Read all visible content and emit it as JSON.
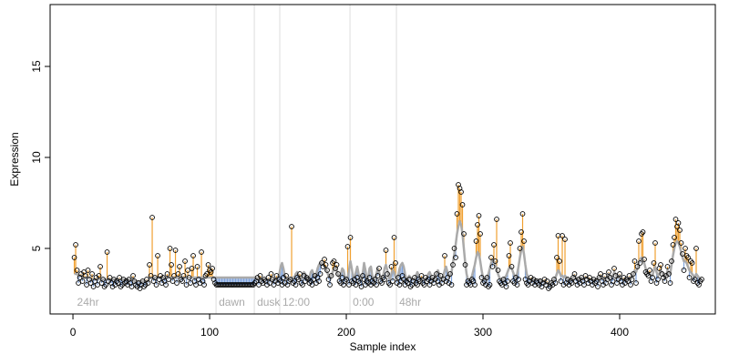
{
  "chart_data": {
    "type": "residual",
    "xlabel": "Sample index",
    "ylabel": "Expression",
    "xlim": [
      -16.7,
      470
    ],
    "ylim": [
      1.4,
      18.4
    ],
    "xticks": [
      0,
      100,
      200,
      300,
      400
    ],
    "yticks": [
      5,
      10,
      15
    ],
    "up_color": "#f0a030",
    "down_color": "#7fa3dc",
    "line_color": "#aaaaaa",
    "vline_color": "#dddddd",
    "vlines": [
      104.7,
      132.7,
      151.3,
      202.7,
      236.7
    ],
    "annotations": [
      {
        "label": "24hr",
        "x": 1
      },
      {
        "label": "dawn",
        "x": 104.7
      },
      {
        "label": "dusk",
        "x": 132.7
      },
      {
        "label": "12:00",
        "x": 151.3
      },
      {
        "label": "0:00",
        "x": 202.7
      },
      {
        "label": "48hr",
        "x": 236.7
      }
    ],
    "values": [
      4.5,
      5.2,
      3.8,
      3.1,
      3.4,
      3.6,
      3.2,
      3.7,
      3.5,
      3.0,
      3.8,
      3.3,
      3.1,
      3.6,
      2.9,
      3.2,
      3.4,
      3.0,
      3.5,
      4.0,
      3.1,
      3.3,
      2.9,
      3.0,
      4.8,
      3.2,
      3.4,
      3.1,
      2.9,
      3.3,
      3.0,
      3.2,
      3.1,
      3.4,
      2.9,
      3.0,
      3.3,
      3.1,
      3.2,
      3.0,
      3.3,
      3.1,
      2.9,
      3.5,
      3.2,
      3.0,
      2.9,
      3.1,
      2.8,
      3.0,
      3.2,
      2.9,
      3.0,
      3.3,
      3.1,
      4.1,
      3.5,
      6.7,
      3.2,
      3.4,
      3.0,
      4.6,
      3.3,
      3.5,
      3.1,
      3.4,
      3.2,
      3.0,
      3.6,
      3.3,
      5.0,
      4.1,
      3.2,
      3.5,
      4.9,
      3.1,
      3.6,
      4.0,
      3.3,
      3.2,
      3.5,
      4.3,
      3.0,
      3.8,
      3.4,
      3.1,
      3.9,
      4.6,
      3.2,
      3.0,
      4.0,
      3.3,
      3.1,
      4.8,
      3.2,
      3.0,
      3.5,
      3.6,
      4.1,
      3.8,
      3.7,
      3.9,
      3.3,
      3.1,
      3.0,
      3.0,
      3.0,
      3.0,
      3.0,
      3.0,
      3.0,
      3.0,
      3.0,
      3.0,
      3.0,
      3.0,
      3.0,
      3.0,
      3.0,
      3.0,
      3.0,
      3.0,
      3.0,
      3.0,
      3.0,
      3.0,
      3.0,
      3.0,
      3.0,
      3.0,
      3.0,
      3.0,
      3.1,
      3.2,
      3.4,
      3.0,
      3.5,
      3.2,
      3.1,
      3.3,
      3.2,
      3.0,
      3.4,
      3.1,
      3.6,
      3.3,
      3.0,
      3.2,
      3.5,
      3.1,
      3.3,
      3.2,
      3.0,
      3.4,
      3.1,
      3.5,
      3.0,
      3.2,
      3.3,
      6.2,
      3.1,
      3.2,
      3.0,
      3.4,
      3.3,
      3.6,
      3.1,
      3.0,
      3.5,
      3.2,
      3.4,
      3.3,
      3.1,
      3.2,
      3.0,
      3.3,
      3.5,
      3.1,
      3.4,
      3.2,
      3.6,
      4.2,
      4.0,
      4.4,
      4.1,
      3.8,
      3.3,
      3.0,
      3.5,
      4.2,
      4.3,
      3.9,
      4.1,
      3.6,
      3.2,
      3.1,
      3.4,
      3.0,
      3.2,
      3.3,
      5.1,
      3.0,
      5.6,
      3.2,
      3.1,
      3.3,
      3.0,
      3.4,
      3.2,
      3.1,
      2.9,
      3.5,
      3.3,
      3.0,
      3.2,
      3.1,
      3.4,
      3.0,
      3.2,
      3.1,
      3.3,
      3.0,
      3.5,
      3.9,
      3.2,
      3.1,
      3.4,
      3.3,
      4.9,
      3.6,
      3.1,
      3.0,
      4.0,
      3.2,
      5.6,
      4.2,
      3.1,
      3.4,
      3.0,
      3.2,
      3.5,
      3.3,
      3.0,
      3.2,
      3.1,
      3.3,
      2.9,
      3.0,
      3.2,
      3.4,
      3.1,
      3.0,
      3.3,
      3.2,
      3.5,
      3.1,
      3.0,
      3.4,
      3.2,
      3.3,
      3.0,
      3.2,
      3.4,
      3.1,
      3.3,
      3.6,
      3.2,
      3.0,
      3.5,
      3.1,
      3.3,
      4.6,
      3.2,
      3.4,
      3.1,
      3.6,
      3.0,
      4.1,
      5.0,
      4.5,
      6.9,
      8.5,
      8.3,
      8.1,
      7.4,
      5.8,
      4.1,
      3.0,
      3.2,
      3.1,
      3.0,
      3.3,
      3.2,
      3.0,
      5.4,
      6.3,
      6.8,
      5.8,
      3.4,
      3.1,
      3.2,
      3.0,
      3.4,
      2.9,
      3.0,
      4.5,
      4.0,
      5.2,
      4.3,
      6.6,
      3.8,
      3.2,
      3.1,
      3.0,
      3.3,
      3.1,
      2.9,
      3.2,
      4.6,
      5.3,
      4.0,
      3.2,
      3.1,
      3.4,
      3.0,
      3.3,
      5.0,
      5.9,
      6.9,
      5.4,
      3.3,
      3.1,
      3.0,
      3.2,
      3.4,
      3.1,
      3.3,
      3.0,
      3.2,
      3.1,
      3.0,
      3.2,
      2.9,
      3.1,
      3.3,
      3.0,
      3.2,
      2.8,
      2.9,
      3.1,
      3.0,
      3.3,
      3.1,
      4.5,
      5.7,
      4.3,
      3.2,
      5.7,
      3.0,
      5.5,
      3.1,
      3.3,
      3.0,
      3.2,
      3.1,
      3.4,
      3.6,
      3.2,
      3.0,
      3.3,
      3.1,
      3.4,
      3.2,
      3.0,
      3.5,
      3.3,
      3.1,
      3.4,
      3.2,
      3.0,
      3.3,
      3.1,
      3.2,
      2.9,
      3.4,
      3.6,
      3.2,
      3.0,
      3.5,
      3.1,
      3.3,
      3.7,
      3.4,
      3.0,
      3.2,
      3.9,
      3.5,
      3.1,
      3.3,
      3.6,
      3.2,
      3.0,
      3.4,
      3.1,
      3.3,
      3.2,
      3.5,
      3.0,
      3.3,
      3.6,
      4.3,
      3.1,
      4.0,
      5.4,
      4.2,
      5.8,
      5.9,
      4.4,
      3.7,
      3.6,
      3.5,
      3.8,
      3.2,
      3.4,
      4.2,
      5.3,
      3.1,
      3.3,
      3.9,
      4.1,
      3.6,
      3.4,
      3.2,
      3.5,
      4.0,
      3.6,
      3.1,
      4.3,
      5.2,
      5.6,
      6.6,
      6.2,
      6.4,
      6.0,
      5.3,
      4.7,
      3.8,
      5.0,
      4.6,
      4.5,
      3.4,
      4.3,
      4.2,
      3.2,
      3.3,
      5.0,
      3.1,
      3.0,
      3.2,
      3.3
    ],
    "fitted": [
      3.6,
      3.6,
      3.6,
      3.5,
      3.5,
      3.5,
      3.4,
      3.4,
      3.4,
      3.4,
      3.4,
      3.4,
      3.3,
      3.3,
      3.3,
      3.3,
      3.3,
      3.3,
      3.3,
      3.3,
      3.3,
      3.3,
      3.3,
      3.3,
      3.3,
      3.3,
      3.3,
      3.3,
      3.3,
      3.3,
      3.3,
      3.3,
      3.3,
      3.3,
      3.3,
      3.3,
      3.3,
      3.3,
      3.3,
      3.3,
      3.3,
      3.3,
      3.3,
      3.3,
      3.2,
      3.2,
      3.2,
      3.2,
      3.2,
      3.2,
      3.2,
      3.2,
      3.2,
      3.2,
      3.2,
      3.4,
      3.4,
      3.4,
      3.4,
      3.4,
      3.4,
      3.4,
      3.4,
      3.4,
      3.4,
      3.4,
      3.4,
      3.4,
      3.4,
      3.4,
      3.4,
      3.4,
      3.4,
      3.4,
      3.4,
      3.4,
      3.4,
      3.4,
      3.4,
      3.4,
      3.4,
      3.4,
      3.4,
      3.4,
      3.4,
      3.4,
      3.4,
      3.4,
      3.4,
      3.4,
      3.4,
      3.4,
      3.4,
      3.4,
      3.4,
      3.4,
      3.4,
      3.4,
      3.4,
      3.4,
      3.4,
      3.4,
      3.4,
      3.4,
      3.4,
      3.4,
      3.4,
      3.4,
      3.4,
      3.4,
      3.4,
      3.4,
      3.4,
      3.4,
      3.4,
      3.4,
      3.4,
      3.4,
      3.4,
      3.4,
      3.4,
      3.4,
      3.4,
      3.4,
      3.4,
      3.4,
      3.4,
      3.4,
      3.4,
      3.4,
      3.4,
      3.4,
      3.4,
      3.4,
      3.3,
      3.3,
      3.3,
      3.3,
      3.3,
      3.3,
      3.3,
      3.3,
      3.3,
      3.3,
      3.3,
      3.3,
      3.3,
      3.3,
      3.3,
      3.4,
      3.6,
      4.0,
      4.2,
      3.9,
      3.5,
      3.3,
      3.3,
      3.3,
      3.3,
      3.4,
      3.4,
      3.4,
      3.6,
      3.7,
      3.5,
      3.3,
      3.3,
      3.5,
      3.7,
      3.6,
      3.4,
      3.3,
      3.4,
      3.7,
      3.8,
      3.6,
      3.4,
      3.6,
      3.9,
      4.1,
      4.2,
      4.2,
      4.1,
      4.0,
      3.9,
      3.7,
      3.5,
      3.4,
      3.5,
      3.7,
      3.9,
      4.0,
      3.8,
      3.5,
      3.4,
      3.6,
      3.9,
      3.8,
      3.4,
      3.3,
      3.4,
      3.8,
      4.3,
      3.9,
      3.4,
      3.4,
      3.7,
      4.0,
      3.6,
      3.3,
      3.3,
      3.6,
      4.2,
      3.8,
      3.3,
      3.4,
      3.9,
      4.0,
      3.5,
      3.3,
      3.3,
      3.6,
      3.9,
      3.7,
      3.4,
      3.3,
      3.5,
      3.9,
      4.1,
      3.8,
      3.4,
      3.3,
      3.6,
      3.8,
      3.7,
      3.4,
      3.3,
      3.5,
      3.9,
      4.1,
      4.2,
      4.0,
      3.6,
      3.3,
      3.3,
      3.5,
      3.4,
      3.3,
      3.3,
      3.3,
      3.5,
      3.7,
      3.5,
      3.3,
      3.3,
      3.4,
      3.3,
      3.3,
      3.4,
      3.6,
      3.7,
      3.5,
      3.3,
      3.3,
      3.4,
      3.6,
      3.8,
      3.6,
      3.4,
      3.3,
      3.5,
      3.8,
      4.0,
      3.7,
      3.4,
      3.5,
      3.7,
      4.2,
      4.7,
      5.2,
      5.8,
      6.2,
      6.5,
      6.3,
      5.8,
      5.0,
      4.2,
      3.6,
      3.3,
      3.3,
      3.3,
      3.5,
      3.8,
      4.1,
      4.5,
      4.8,
      4.7,
      4.3,
      3.8,
      3.4,
      3.3,
      3.3,
      3.4,
      3.6,
      3.9,
      4.2,
      4.4,
      4.3,
      4.1,
      3.9,
      3.6,
      3.4,
      3.3,
      3.3,
      3.3,
      3.4,
      3.5,
      3.7,
      3.9,
      4.0,
      3.9,
      3.7,
      3.5,
      3.4,
      3.6,
      4.0,
      4.5,
      4.9,
      5.1,
      4.7,
      4.1,
      3.6,
      3.4,
      3.3,
      3.3,
      3.3,
      3.3,
      3.3,
      3.3,
      3.3,
      3.3,
      3.3,
      3.2,
      3.2,
      3.2,
      3.1,
      3.1,
      3.0,
      3.0,
      3.1,
      3.2,
      3.3,
      3.4,
      3.6,
      3.8,
      3.7,
      3.5,
      3.5,
      3.4,
      3.5,
      3.4,
      3.3,
      3.3,
      3.3,
      3.3,
      3.4,
      3.5,
      3.4,
      3.3,
      3.3,
      3.3,
      3.4,
      3.3,
      3.3,
      3.4,
      3.4,
      3.3,
      3.3,
      3.3,
      3.3,
      3.3,
      3.3,
      3.3,
      3.3,
      3.4,
      3.5,
      3.4,
      3.3,
      3.4,
      3.3,
      3.4,
      3.6,
      3.5,
      3.4,
      3.5,
      3.7,
      3.6,
      3.4,
      3.4,
      3.5,
      3.4,
      3.3,
      3.3,
      3.3,
      3.3,
      3.3,
      3.4,
      3.3,
      3.4,
      3.6,
      3.8,
      3.7,
      3.9,
      4.2,
      4.4,
      4.5,
      4.4,
      4.2,
      3.9,
      3.7,
      3.6,
      3.6,
      3.5,
      3.5,
      3.8,
      4.0,
      3.7,
      3.5,
      3.6,
      3.8,
      3.7,
      3.5,
      3.4,
      3.5,
      3.8,
      3.7,
      3.6,
      4.1,
      4.6,
      5.0,
      5.3,
      5.4,
      5.3,
      5.1,
      4.8,
      4.5,
      4.3,
      4.3,
      4.2,
      4.0,
      3.8,
      3.7,
      3.6,
      3.5,
      3.4,
      3.6,
      3.5,
      3.4,
      3.3,
      3.3
    ]
  }
}
